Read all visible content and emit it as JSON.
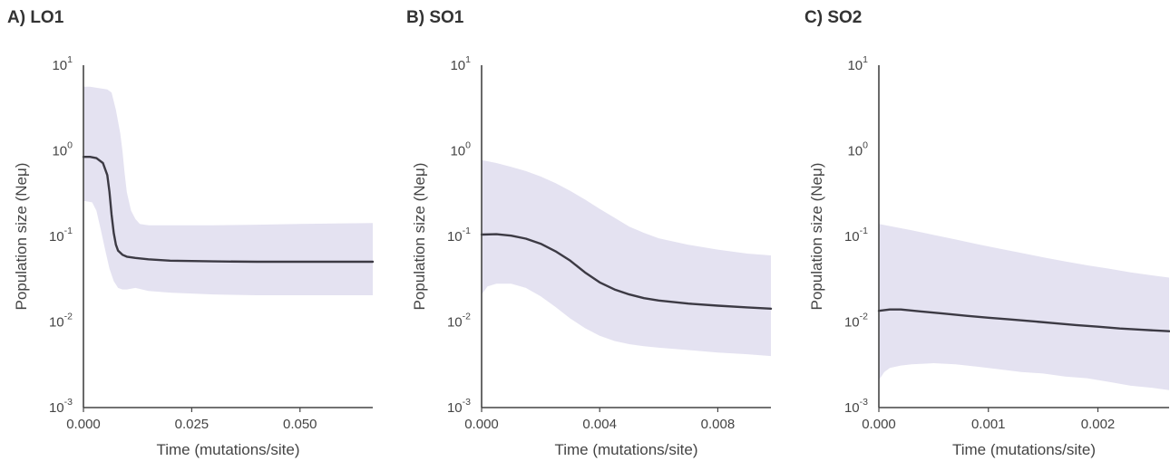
{
  "chart_data": [
    {
      "type": "line",
      "title": "A) LO1",
      "xlabel": "Time (mutations/site)",
      "ylabel": "Population size (Neμ)",
      "y_scale": "log",
      "ylim": [
        0.001,
        10
      ],
      "xlim": [
        0,
        0.0668
      ],
      "x_ticks": [
        {
          "v": 0,
          "label": "0.000"
        },
        {
          "v": 0.025,
          "label": "0.025"
        },
        {
          "v": 0.05,
          "label": "0.050"
        }
      ],
      "y_ticks": [
        {
          "e": 1
        },
        {
          "e": 0
        },
        {
          "e": -1
        },
        {
          "e": -2
        },
        {
          "e": -3
        }
      ],
      "series": [
        {
          "kind": "median",
          "x": [
            0,
            0.0015,
            0.003,
            0.0045,
            0.0055,
            0.006,
            0.0065,
            0.007,
            0.0075,
            0.008,
            0.009,
            0.01,
            0.012,
            0.015,
            0.02,
            0.025,
            0.03,
            0.04,
            0.05,
            0.06,
            0.0668
          ],
          "y": [
            0.85,
            0.85,
            0.82,
            0.72,
            0.52,
            0.33,
            0.18,
            0.11,
            0.08,
            0.068,
            0.061,
            0.058,
            0.056,
            0.054,
            0.052,
            0.0515,
            0.051,
            0.0505,
            0.0505,
            0.0505,
            0.0505
          ]
        },
        {
          "kind": "upper",
          "x": [
            0,
            0.0015,
            0.0035,
            0.0055,
            0.0065,
            0.0075,
            0.0085,
            0.009,
            0.0095,
            0.01,
            0.011,
            0.012,
            0.013,
            0.015,
            0.02,
            0.03,
            0.04,
            0.05,
            0.06,
            0.0668
          ],
          "y": [
            5.6,
            5.6,
            5.4,
            5.2,
            4.8,
            3.0,
            1.6,
            1.0,
            0.55,
            0.33,
            0.2,
            0.16,
            0.14,
            0.135,
            0.135,
            0.135,
            0.137,
            0.14,
            0.142,
            0.143
          ]
        },
        {
          "kind": "lower",
          "x": [
            0,
            0.002,
            0.003,
            0.004,
            0.005,
            0.006,
            0.007,
            0.008,
            0.009,
            0.01,
            0.012,
            0.015,
            0.02,
            0.03,
            0.04,
            0.05,
            0.06,
            0.0668
          ],
          "y": [
            0.26,
            0.25,
            0.2,
            0.12,
            0.07,
            0.042,
            0.03,
            0.025,
            0.024,
            0.024,
            0.025,
            0.023,
            0.022,
            0.021,
            0.0205,
            0.0205,
            0.0205,
            0.0205
          ]
        }
      ]
    },
    {
      "type": "line",
      "title": "B) SO1",
      "xlabel": "Time (mutations/site)",
      "ylabel": "Population size (Neμ)",
      "y_scale": "log",
      "ylim": [
        0.001,
        10
      ],
      "xlim": [
        0,
        0.0098
      ],
      "x_ticks": [
        {
          "v": 0,
          "label": "0.000"
        },
        {
          "v": 0.004,
          "label": "0.004"
        },
        {
          "v": 0.008,
          "label": "0.008"
        }
      ],
      "y_ticks": [
        {
          "e": 1
        },
        {
          "e": 0
        },
        {
          "e": -1
        },
        {
          "e": -2
        },
        {
          "e": -3
        }
      ],
      "series": [
        {
          "kind": "median",
          "x": [
            0,
            0.0005,
            0.001,
            0.0015,
            0.002,
            0.0025,
            0.003,
            0.0035,
            0.004,
            0.0045,
            0.005,
            0.0055,
            0.006,
            0.007,
            0.008,
            0.009,
            0.0098
          ],
          "y": [
            0.105,
            0.106,
            0.102,
            0.094,
            0.082,
            0.067,
            0.052,
            0.038,
            0.029,
            0.024,
            0.021,
            0.019,
            0.0178,
            0.0164,
            0.0155,
            0.0148,
            0.0143
          ]
        },
        {
          "kind": "upper",
          "x": [
            0,
            0.0005,
            0.001,
            0.0015,
            0.002,
            0.0025,
            0.003,
            0.0035,
            0.004,
            0.0045,
            0.005,
            0.0055,
            0.006,
            0.007,
            0.008,
            0.009,
            0.0098
          ],
          "y": [
            0.78,
            0.72,
            0.65,
            0.58,
            0.5,
            0.42,
            0.34,
            0.27,
            0.21,
            0.165,
            0.13,
            0.11,
            0.095,
            0.08,
            0.07,
            0.063,
            0.06
          ]
        },
        {
          "kind": "lower",
          "x": [
            0,
            0.0002,
            0.0005,
            0.001,
            0.0015,
            0.002,
            0.0025,
            0.003,
            0.0035,
            0.004,
            0.0045,
            0.005,
            0.0055,
            0.006,
            0.007,
            0.008,
            0.009,
            0.0098
          ],
          "y": [
            0.021,
            0.026,
            0.028,
            0.028,
            0.025,
            0.02,
            0.015,
            0.011,
            0.0085,
            0.0069,
            0.006,
            0.0055,
            0.0052,
            0.005,
            0.0047,
            0.0044,
            0.0042,
            0.004
          ]
        }
      ]
    },
    {
      "type": "line",
      "title": "C) SO2",
      "xlabel": "Time (mutations/site)",
      "ylabel": "Population size (Neμ)",
      "y_scale": "log",
      "ylim": [
        0.001,
        10
      ],
      "xlim": [
        0,
        0.00265
      ],
      "x_ticks": [
        {
          "v": 0,
          "label": "0.000"
        },
        {
          "v": 0.001,
          "label": "0.001"
        },
        {
          "v": 0.002,
          "label": "0.002"
        }
      ],
      "y_ticks": [
        {
          "e": 1
        },
        {
          "e": 0
        },
        {
          "e": -1
        },
        {
          "e": -2
        },
        {
          "e": -3
        }
      ],
      "series": [
        {
          "kind": "median",
          "x": [
            0,
            0.0001,
            0.0002,
            0.0004,
            0.0006,
            0.0008,
            0.001,
            0.0012,
            0.0014,
            0.0016,
            0.0018,
            0.002,
            0.0022,
            0.0024,
            0.00265
          ],
          "y": [
            0.0135,
            0.014,
            0.014,
            0.0132,
            0.0125,
            0.0118,
            0.0112,
            0.0107,
            0.0102,
            0.0097,
            0.0092,
            0.0088,
            0.0084,
            0.0081,
            0.0078
          ]
        },
        {
          "kind": "upper",
          "x": [
            0,
            0.0001,
            0.0003,
            0.0005,
            0.0007,
            0.0009,
            0.0011,
            0.0013,
            0.0015,
            0.0017,
            0.0019,
            0.0021,
            0.0023,
            0.0025,
            0.00265
          ],
          "y": [
            0.14,
            0.132,
            0.118,
            0.104,
            0.092,
            0.081,
            0.072,
            0.064,
            0.057,
            0.051,
            0.046,
            0.042,
            0.038,
            0.035,
            0.033
          ]
        },
        {
          "kind": "lower",
          "x": [
            0,
            5e-05,
            0.0001,
            0.0002,
            0.0003,
            0.0005,
            0.0007,
            0.0009,
            0.0011,
            0.0013,
            0.0015,
            0.0017,
            0.0019,
            0.0021,
            0.0023,
            0.0025,
            0.00265
          ],
          "y": [
            0.0021,
            0.0026,
            0.0029,
            0.0031,
            0.0032,
            0.0033,
            0.0032,
            0.003,
            0.0028,
            0.0026,
            0.0025,
            0.0023,
            0.0022,
            0.002,
            0.0018,
            0.0017,
            0.0016
          ]
        }
      ]
    }
  ],
  "colors": {
    "band": "#e4e2f1",
    "line": "#3c3a44",
    "axis": "#444444"
  }
}
